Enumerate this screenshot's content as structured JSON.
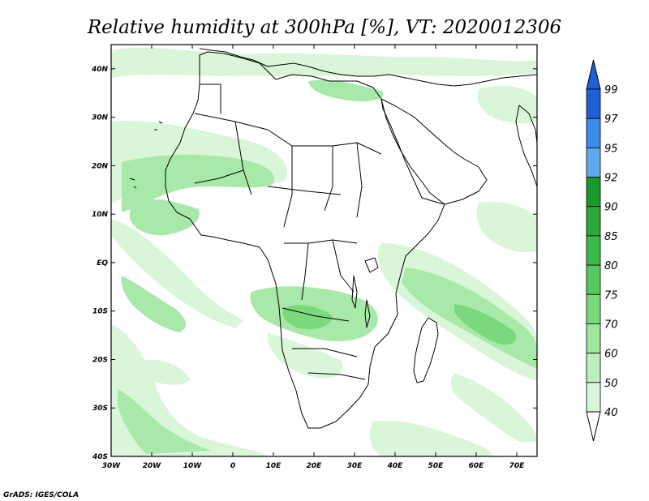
{
  "title": "Relative humidity at 300hPa [%], VT: 2020012306",
  "credit": "GrADS: IGES/COLA",
  "map": {
    "lon_range": [
      -30,
      75
    ],
    "lat_range": [
      -40,
      45
    ],
    "lon_ticks": [
      "30W",
      "20W",
      "10W",
      "0",
      "10E",
      "20E",
      "30E",
      "40E",
      "50E",
      "60E",
      "70E"
    ],
    "lat_ticks": [
      "40N",
      "30N",
      "20N",
      "10N",
      "EQ",
      "10S",
      "20S",
      "30S",
      "40S"
    ]
  },
  "colorbar": {
    "labels": [
      "99",
      "97",
      "95",
      "92",
      "90",
      "85",
      "80",
      "75",
      "70",
      "60",
      "50",
      "40"
    ],
    "colors": [
      "#1e5fd6",
      "#3b8be8",
      "#62a8ef",
      "#1a9a2a",
      "#2ca83a",
      "#3bbb4a",
      "#55c95f",
      "#7ad97c",
      "#9ee59e",
      "#bdeebc",
      "#d9f6d8",
      "#eefcee"
    ],
    "top_arrow_color": "#1e5fd6",
    "bottom_arrow_color": "#ffffff"
  },
  "humidity_colors": {
    "light": "#d9f6d8",
    "medium": "#a8e8a8",
    "strong": "#7ad97c"
  }
}
